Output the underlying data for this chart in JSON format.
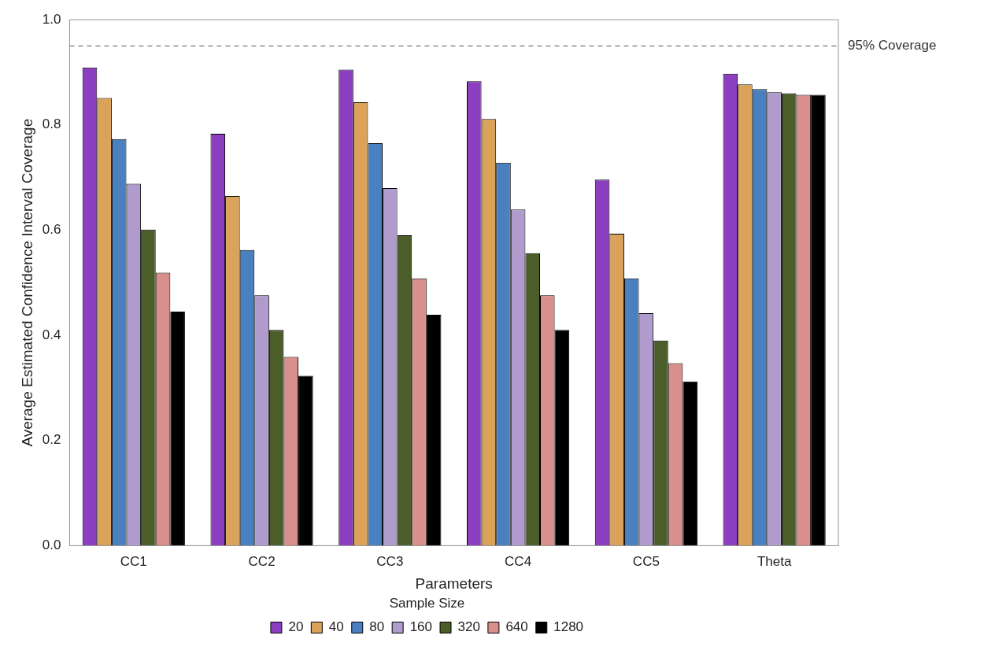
{
  "chart_data": {
    "type": "bar",
    "xlabel": "Parameters",
    "ylabel": "Average Estimated Confidence Interval Coverage",
    "legend_title": "Sample Size",
    "legend": "bottom",
    "grid": false,
    "categories": [
      "CC1",
      "CC2",
      "CC3",
      "CC4",
      "CC5",
      "Theta"
    ],
    "ylim": [
      0,
      1
    ],
    "yticks": [
      {
        "value": 0,
        "label": "0.0"
      },
      0.2,
      0.4,
      0.6,
      0.8,
      {
        "value": 1,
        "label": "1.0"
      }
    ],
    "series": [
      {
        "name": "20",
        "color": "#8b3fc0",
        "values": [
          0.909,
          0.783,
          0.905,
          0.883,
          0.696,
          0.897
        ]
      },
      {
        "name": "40",
        "color": "#dba35a",
        "values": [
          0.851,
          0.665,
          0.843,
          0.811,
          0.593,
          0.877
        ]
      },
      {
        "name": "80",
        "color": "#4a80c0",
        "values": [
          0.773,
          0.562,
          0.765,
          0.728,
          0.508,
          0.868
        ]
      },
      {
        "name": "160",
        "color": "#b09ccc",
        "values": [
          0.688,
          0.476,
          0.68,
          0.639,
          0.442,
          0.862
        ]
      },
      {
        "name": "320",
        "color": "#4b5e2a",
        "values": [
          0.601,
          0.41,
          0.59,
          0.556,
          0.39,
          0.86
        ]
      },
      {
        "name": "640",
        "color": "#d98f8c",
        "values": [
          0.519,
          0.359,
          0.508,
          0.476,
          0.347,
          0.857
        ]
      },
      {
        "name": "1280",
        "color": "#000000",
        "values": [
          0.445,
          0.323,
          0.439,
          0.41,
          0.312,
          0.857
        ]
      }
    ],
    "ref_lines": [
      {
        "axis": "y",
        "value": 0.95,
        "label": "95% Coverage",
        "color": "#555555",
        "line_style": "dashed"
      }
    ]
  }
}
